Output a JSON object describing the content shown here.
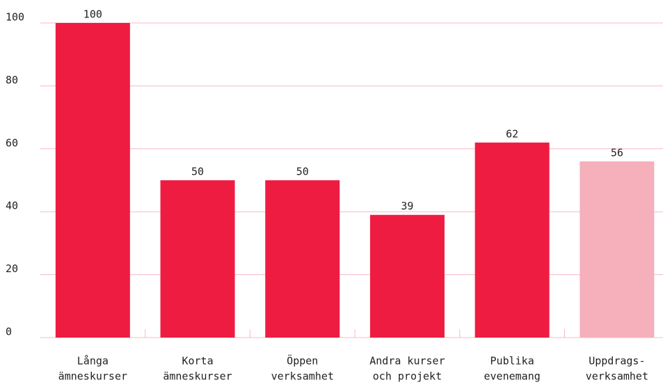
{
  "chart_data": {
    "type": "bar",
    "categories": [
      [
        "Långa",
        "ämneskurser"
      ],
      [
        "Korta",
        "ämneskurser"
      ],
      [
        "Öppen",
        "verksamhet"
      ],
      [
        "Andra kurser",
        "och projekt"
      ],
      [
        "Publika",
        "evenemang"
      ],
      [
        "Uppdrags-",
        "verksamhet"
      ]
    ],
    "values": [
      100,
      50,
      50,
      39,
      62,
      56
    ],
    "colors": [
      "#ef1c41",
      "#ef1c41",
      "#ef1c41",
      "#ef1c41",
      "#ef1c41",
      "#f5b0bb"
    ],
    "ylim": [
      0,
      100
    ],
    "yticks": [
      0,
      20,
      40,
      60,
      80,
      100
    ],
    "grid": true
  }
}
